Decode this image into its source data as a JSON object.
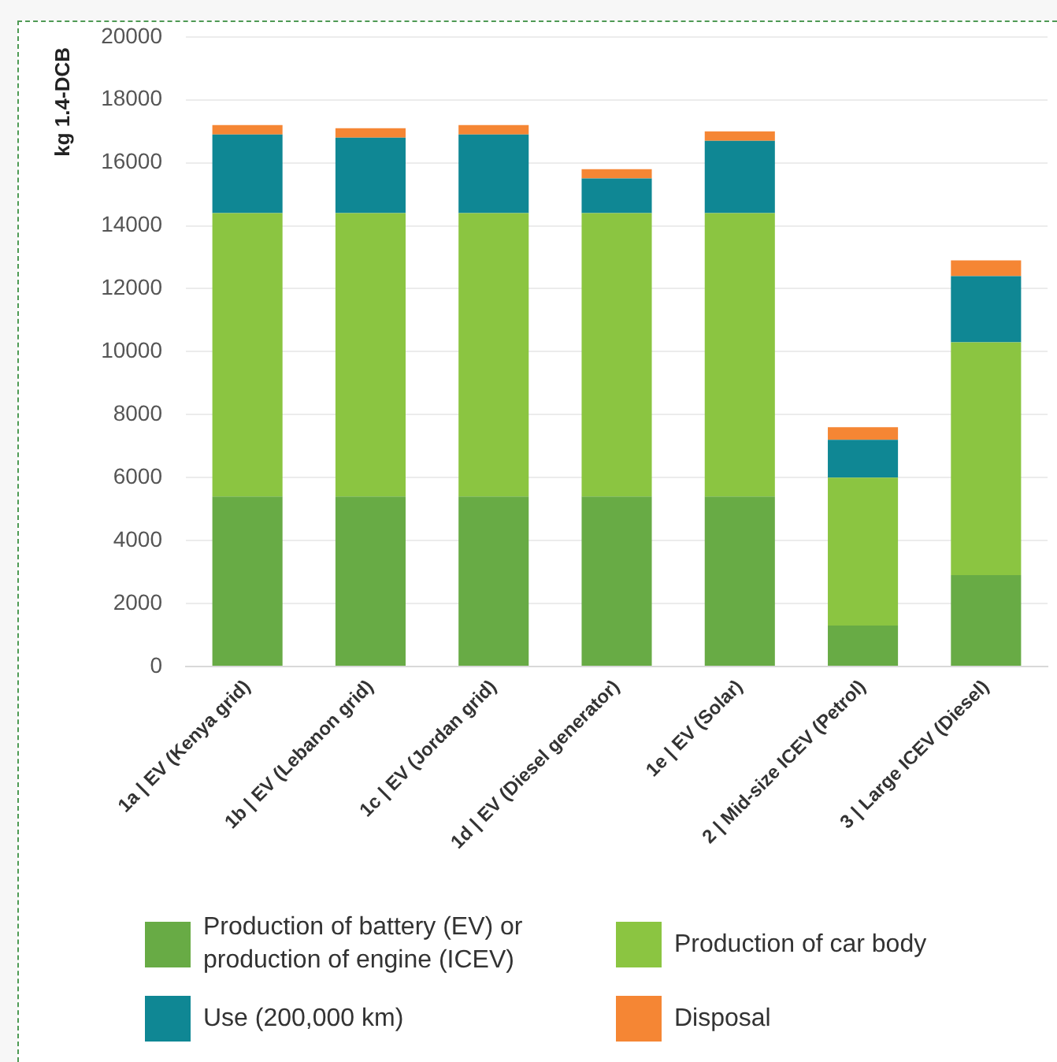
{
  "chart_data": {
    "type": "bar",
    "stacked": true,
    "ylabel": "kg 1.4-DCB",
    "categories": [
      "1a | EV (Kenya grid)",
      "1b | EV (Lebanon grid)",
      "1c | EV (Jordan grid)",
      "1d | EV (Diesel generator)",
      "1e | EV (Solar)",
      "2 | Mid-size ICEV (Petrol)",
      "3 | Large ICEV (Diesel)"
    ],
    "series": [
      {
        "name": "Production of battery (EV) or production of engine (ICEV)",
        "color": "#68ab45",
        "values": [
          5400,
          5400,
          5400,
          5400,
          5400,
          1300,
          2900
        ]
      },
      {
        "name": "Production of car body",
        "color": "#8bc541",
        "values": [
          9000,
          9000,
          9000,
          9000,
          9000,
          4700,
          7400
        ]
      },
      {
        "name": "Use (200,000 km)",
        "color": "#0f8794",
        "values": [
          2500,
          2400,
          2500,
          1100,
          2300,
          1200,
          2100
        ]
      },
      {
        "name": "Disposal",
        "color": "#f58634",
        "values": [
          300,
          300,
          300,
          300,
          300,
          400,
          500
        ]
      }
    ],
    "ylim": [
      0,
      20000
    ],
    "yticks": [
      0,
      2000,
      4000,
      6000,
      8000,
      10000,
      12000,
      14000,
      16000,
      18000,
      20000
    ],
    "grid": "y",
    "legend": "bottom"
  }
}
